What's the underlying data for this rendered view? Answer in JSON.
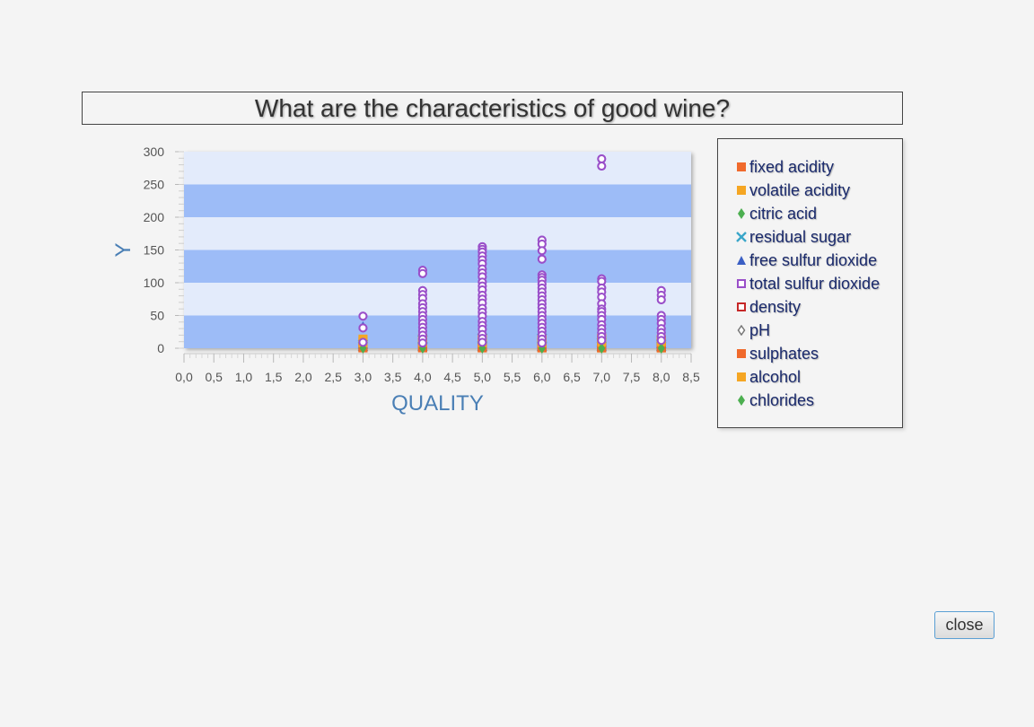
{
  "chart_data": {
    "type": "scatter",
    "title": "What are the characteristics of good wine?",
    "xlabel": "QUALITY",
    "ylabel": "Y",
    "xlim": [
      0,
      8.5
    ],
    "ylim": [
      0,
      300
    ],
    "x_ticks": [
      "0,0",
      "0,5",
      "1,0",
      "1,5",
      "2,0",
      "2,5",
      "3,0",
      "3,5",
      "4,0",
      "4,5",
      "5,0",
      "5,5",
      "6,0",
      "6,5",
      "7,0",
      "7,5",
      "8,0",
      "8,5"
    ],
    "y_ticks": [
      "0",
      "50",
      "100",
      "150",
      "200",
      "250",
      "300"
    ],
    "grid": "horizontal alternating bands",
    "legend_position": "right",
    "series": [
      {
        "name": "fixed acidity",
        "marker": "square",
        "color": "#f06a2c",
        "points": [
          [
            3,
            11.6
          ],
          [
            3,
            7.5
          ],
          [
            4,
            15.6
          ],
          [
            4,
            7.9
          ],
          [
            5,
            15.9
          ],
          [
            5,
            7.9
          ],
          [
            6,
            14.3
          ],
          [
            6,
            8.3
          ],
          [
            7,
            15.6
          ],
          [
            7,
            8.9
          ],
          [
            8,
            12.6
          ],
          [
            8,
            8.6
          ]
        ]
      },
      {
        "name": "volatile acidity",
        "marker": "square",
        "color": "#f5a623",
        "points": [
          [
            3,
            1.58
          ],
          [
            3,
            0.88
          ],
          [
            4,
            1.13
          ],
          [
            4,
            0.69
          ],
          [
            5,
            1.33
          ],
          [
            5,
            0.58
          ],
          [
            6,
            1.04
          ],
          [
            6,
            0.5
          ],
          [
            7,
            0.91
          ],
          [
            7,
            0.4
          ],
          [
            8,
            0.85
          ],
          [
            8,
            0.42
          ]
        ]
      },
      {
        "name": "citric acid",
        "marker": "diamond",
        "color": "#4caf50",
        "points": [
          [
            3,
            0.66
          ],
          [
            3,
            0.17
          ],
          [
            4,
            1.0
          ],
          [
            4,
            0.17
          ],
          [
            5,
            0.79
          ],
          [
            5,
            0.24
          ],
          [
            6,
            0.78
          ],
          [
            6,
            0.27
          ],
          [
            7,
            0.76
          ],
          [
            7,
            0.37
          ],
          [
            8,
            0.72
          ],
          [
            8,
            0.39
          ]
        ]
      },
      {
        "name": "residual sugar",
        "marker": "x",
        "color": "#3aa6c9",
        "points": [
          [
            3,
            5.7
          ],
          [
            3,
            2.6
          ],
          [
            4,
            12.9
          ],
          [
            4,
            2.7
          ],
          [
            5,
            15.5
          ],
          [
            5,
            2.5
          ],
          [
            6,
            15.4
          ],
          [
            6,
            2.5
          ],
          [
            7,
            8.9
          ],
          [
            7,
            2.7
          ],
          [
            8,
            6.4
          ],
          [
            8,
            2.6
          ]
        ]
      },
      {
        "name": "free sulfur dioxide",
        "marker": "triangle",
        "color": "#3b5fc4",
        "points": [
          [
            3,
            34
          ],
          [
            3,
            11
          ],
          [
            4,
            41
          ],
          [
            4,
            12
          ],
          [
            5,
            68
          ],
          [
            5,
            17
          ],
          [
            6,
            72
          ],
          [
            6,
            16
          ],
          [
            7,
            54
          ],
          [
            7,
            14
          ],
          [
            8,
            42
          ],
          [
            8,
            13
          ]
        ]
      },
      {
        "name": "total sulfur dioxide",
        "marker": "hollow-square",
        "color": "#9a4fc9",
        "points": [
          [
            3,
            49
          ],
          [
            3,
            31
          ],
          [
            3,
            9
          ],
          [
            4,
            119
          ],
          [
            4,
            114
          ],
          [
            4,
            88
          ],
          [
            4,
            82
          ],
          [
            4,
            76
          ],
          [
            4,
            68
          ],
          [
            4,
            62
          ],
          [
            4,
            56
          ],
          [
            4,
            50
          ],
          [
            4,
            44
          ],
          [
            4,
            38
          ],
          [
            4,
            32
          ],
          [
            4,
            26
          ],
          [
            4,
            20
          ],
          [
            4,
            14
          ],
          [
            4,
            8
          ],
          [
            5,
            155
          ],
          [
            5,
            151
          ],
          [
            5,
            147
          ],
          [
            5,
            141
          ],
          [
            5,
            135
          ],
          [
            5,
            129
          ],
          [
            5,
            121
          ],
          [
            5,
            115
          ],
          [
            5,
            109
          ],
          [
            5,
            101
          ],
          [
            5,
            95
          ],
          [
            5,
            89
          ],
          [
            5,
            81
          ],
          [
            5,
            75
          ],
          [
            5,
            69
          ],
          [
            5,
            61
          ],
          [
            5,
            55
          ],
          [
            5,
            49
          ],
          [
            5,
            41
          ],
          [
            5,
            35
          ],
          [
            5,
            29
          ],
          [
            5,
            21
          ],
          [
            5,
            15
          ],
          [
            5,
            9
          ],
          [
            6,
            165
          ],
          [
            6,
            159
          ],
          [
            6,
            149
          ],
          [
            6,
            136
          ],
          [
            6,
            112
          ],
          [
            6,
            108
          ],
          [
            6,
            104
          ],
          [
            6,
            98
          ],
          [
            6,
            92
          ],
          [
            6,
            86
          ],
          [
            6,
            80
          ],
          [
            6,
            74
          ],
          [
            6,
            68
          ],
          [
            6,
            62
          ],
          [
            6,
            56
          ],
          [
            6,
            50
          ],
          [
            6,
            44
          ],
          [
            6,
            38
          ],
          [
            6,
            32
          ],
          [
            6,
            26
          ],
          [
            6,
            20
          ],
          [
            6,
            14
          ],
          [
            6,
            8
          ],
          [
            7,
            289
          ],
          [
            7,
            278
          ],
          [
            7,
            106
          ],
          [
            7,
            102
          ],
          [
            7,
            92
          ],
          [
            7,
            86
          ],
          [
            7,
            78
          ],
          [
            7,
            68
          ],
          [
            7,
            60
          ],
          [
            7,
            56
          ],
          [
            7,
            50
          ],
          [
            7,
            44
          ],
          [
            7,
            36
          ],
          [
            7,
            30
          ],
          [
            7,
            24
          ],
          [
            7,
            18
          ],
          [
            7,
            12
          ],
          [
            8,
            88
          ],
          [
            8,
            81
          ],
          [
            8,
            74
          ],
          [
            8,
            50
          ],
          [
            8,
            44
          ],
          [
            8,
            38
          ],
          [
            8,
            30
          ],
          [
            8,
            24
          ],
          [
            8,
            18
          ],
          [
            8,
            12
          ]
        ]
      },
      {
        "name": "density",
        "marker": "hollow-square",
        "color": "#c62828",
        "points": [
          [
            3,
            1.0
          ],
          [
            4,
            1.0
          ],
          [
            5,
            1.0
          ],
          [
            6,
            1.0
          ],
          [
            7,
            1.0
          ],
          [
            8,
            1.0
          ]
        ]
      },
      {
        "name": "pH",
        "marker": "hollow-diamond",
        "color": "#777777",
        "points": [
          [
            3,
            3.4
          ],
          [
            4,
            3.4
          ],
          [
            5,
            3.3
          ],
          [
            6,
            3.3
          ],
          [
            7,
            3.3
          ],
          [
            8,
            3.3
          ]
        ]
      },
      {
        "name": "sulphates",
        "marker": "square",
        "color": "#f06a2c",
        "points": [
          [
            3,
            0.57
          ],
          [
            4,
            0.6
          ],
          [
            5,
            0.62
          ],
          [
            6,
            0.68
          ],
          [
            7,
            0.74
          ],
          [
            8,
            0.77
          ]
        ]
      },
      {
        "name": "alcohol",
        "marker": "square",
        "color": "#f5a623",
        "points": [
          [
            3,
            14.0
          ],
          [
            3,
            8.4
          ],
          [
            4,
            13.1
          ],
          [
            4,
            9.0
          ],
          [
            5,
            14.9
          ],
          [
            5,
            8.5
          ],
          [
            6,
            14.0
          ],
          [
            6,
            8.4
          ],
          [
            7,
            14.0
          ],
          [
            7,
            9.2
          ],
          [
            8,
            14.0
          ],
          [
            8,
            9.8
          ]
        ]
      },
      {
        "name": "chlorides",
        "marker": "diamond",
        "color": "#4caf50",
        "points": [
          [
            3,
            0.12
          ],
          [
            4,
            0.09
          ],
          [
            5,
            0.09
          ],
          [
            6,
            0.08
          ],
          [
            7,
            0.08
          ],
          [
            8,
            0.07
          ]
        ]
      }
    ]
  },
  "close_label": "close"
}
